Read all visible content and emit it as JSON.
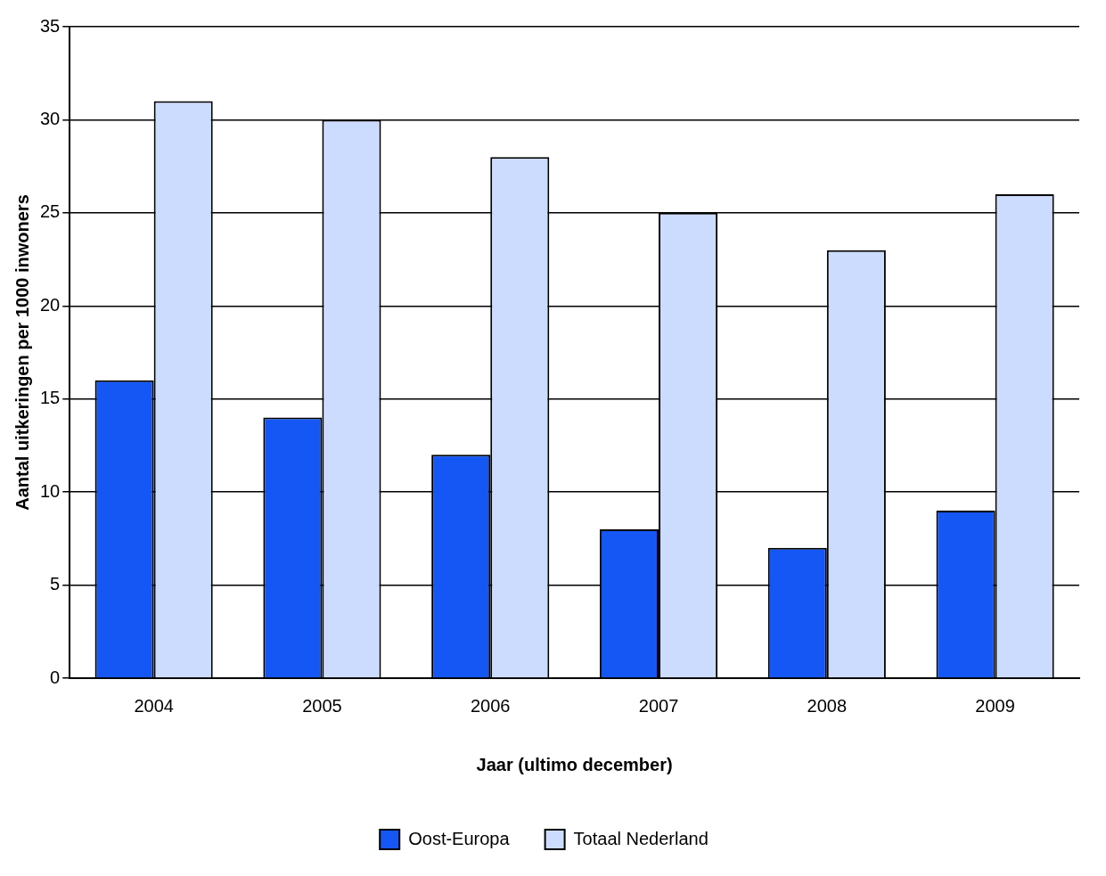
{
  "chart_data": {
    "type": "bar",
    "x_label": "Jaar (ultimo december)",
    "y_label": "Aantal uitkeringen per 1000 inwoners",
    "categories": [
      "2004",
      "2005",
      "2006",
      "2007",
      "2008",
      "2009"
    ],
    "series": [
      {
        "name": "Oost-Europa",
        "color": "#1457f5",
        "values": [
          16,
          14,
          12,
          8,
          7,
          9
        ]
      },
      {
        "name": "Totaal Nederland",
        "color": "#ccdcff",
        "values": [
          31,
          30,
          28,
          25,
          23,
          26
        ]
      }
    ],
    "ylim": [
      0,
      35
    ],
    "yticks": [
      0,
      5,
      10,
      15,
      20,
      25,
      30,
      35
    ],
    "grid": true,
    "legend": "bottom"
  }
}
